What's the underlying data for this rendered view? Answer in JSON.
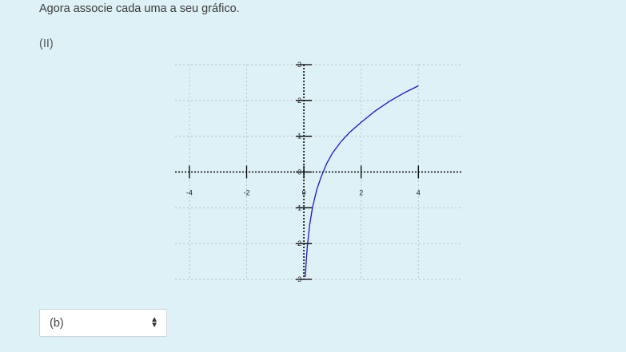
{
  "instruction": "Agora associe cada uma a seu gráfico.",
  "item_label": "(II)",
  "chart_data": {
    "type": "line",
    "title": "",
    "xlabel": "",
    "ylabel": "",
    "xlim": [
      -4.5,
      5.5
    ],
    "ylim": [
      -3,
      3
    ],
    "x_ticks": [
      -4,
      -2,
      0,
      2,
      4
    ],
    "x_tick_labels": [
      "-4",
      "-2",
      "0",
      "2",
      "4"
    ],
    "y_ticks": [
      -3,
      -2,
      -1,
      0,
      1,
      2,
      3
    ],
    "y_tick_labels": [
      "-3",
      "-2",
      "-1",
      "0",
      "1",
      "2",
      "3"
    ],
    "grid": true,
    "series": [
      {
        "color": "#1a14d8",
        "x": [
          0.05,
          0.08,
          0.12,
          0.2,
          0.3,
          0.45,
          0.6,
          0.8,
          1.0,
          1.3,
          1.6,
          2.0,
          2.5,
          3.0,
          3.5,
          4.0
        ],
        "y": [
          -2.93,
          -2.5,
          -2.08,
          -1.48,
          -1.0,
          -0.49,
          -0.14,
          0.24,
          0.53,
          0.85,
          1.11,
          1.39,
          1.71,
          1.98,
          2.21,
          2.41
        ]
      }
    ]
  },
  "answer_select": {
    "value": "(b)",
    "arrow_icon": "up-down-arrows-icon"
  }
}
